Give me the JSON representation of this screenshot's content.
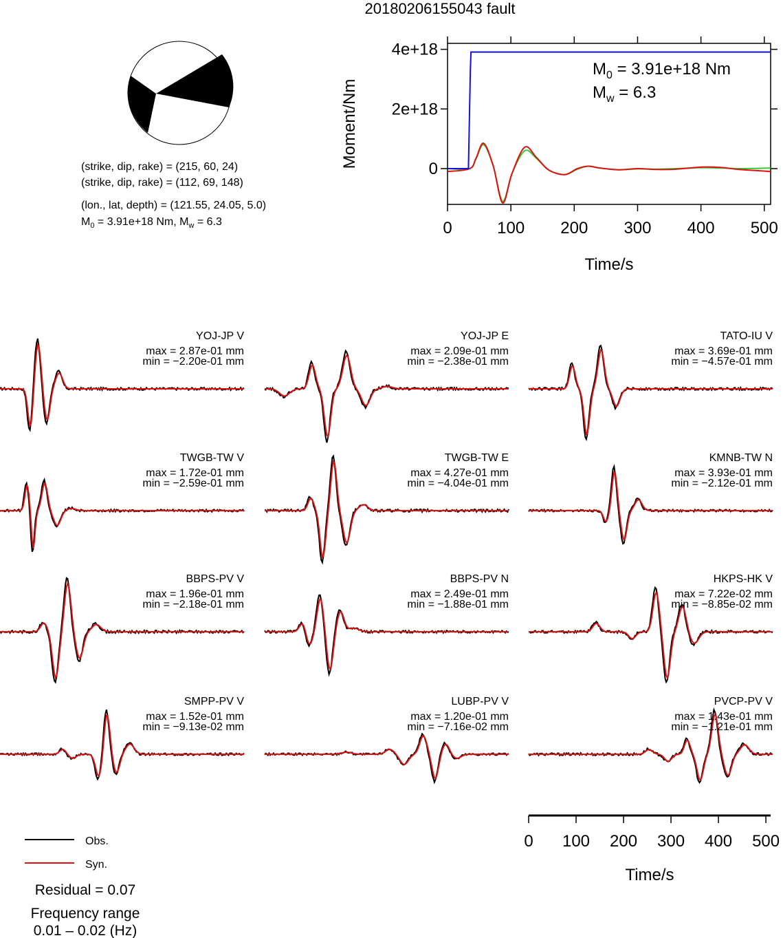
{
  "title": "20180206155043 fault",
  "mechanism": {
    "line1": "(strike, dip, rake) = (215, 60, 24)",
    "line2": "(strike, dip, rake) = (112, 69, 148)",
    "line3": "(lon., lat, depth) = (121.55, 24.05, 5.0)",
    "m0_text": "3.91e+18 Nm",
    "mw_text": "6.3"
  },
  "legend": {
    "obs_label": "Obs.",
    "syn_label": "Syn.",
    "residual": "Residual = 0.07",
    "freq_line1": "Frequency range",
    "freq_line2": "0.01 – 0.02 (Hz)"
  },
  "colors": {
    "obs": "#000000",
    "syn": "#dd1111",
    "moment": "#1111dd",
    "rate_green": "#33cc33"
  },
  "chart_data": [
    {
      "type": "line",
      "ylabel": "Moment/Nm",
      "xlabel": "Time/s",
      "xlim": [
        0,
        510
      ],
      "ylim": [
        -1.2e+18,
        4.2e+18
      ],
      "x_ticks": [
        0,
        100,
        200,
        300,
        400,
        500
      ],
      "y_ticks": [
        0,
        2e+18,
        4e+18
      ],
      "y_tick_labels": [
        "0",
        "2e+18",
        "4e+18"
      ],
      "annotation_m0": "3.91e+18 Nm",
      "annotation_mw": "6.3",
      "series": [
        {
          "color": "#1111dd",
          "x": [
            0,
            33,
            36,
            37,
            510
          ],
          "y": [
            0,
            0,
            3.3e+18,
            3.91e+18,
            3.91e+18
          ]
        },
        {
          "color": "#dd1111",
          "x": [
            0,
            35,
            45,
            57,
            72,
            87,
            102,
            122,
            140,
            160,
            185,
            205,
            222,
            240,
            270,
            300,
            330,
            360,
            400,
            430,
            460,
            490,
            510
          ],
          "y": [
            -1e+17,
            0,
            3.5e+17,
            8.5e+17,
            1e+17,
            -1.15e+18,
            -1.5e+17,
            7.2e+17,
            3.8e+17,
            -5e+16,
            -2e+17,
            0.0,
            8e+16,
            2e+16,
            -4e+16,
            0.0,
            -3e+16,
            -2e+16,
            5e+16,
            4e+16,
            -3e+16,
            -7e+16,
            -1e+17
          ]
        },
        {
          "color": "#33cc33",
          "x": [
            0,
            35,
            45,
            57,
            72,
            87,
            102,
            122,
            140,
            160,
            185,
            205,
            222,
            240,
            270,
            300,
            330,
            360,
            400,
            430,
            460,
            490,
            510
          ],
          "y": [
            0,
            0,
            3.3e+17,
            8e+17,
            1e+17,
            -1.1e+18,
            -1.5e+17,
            6e+17,
            3.5e+17,
            -5e+16,
            -2e+17,
            -2e+16,
            8e+16,
            2e+16,
            -4e+16,
            -1e+16,
            -2e+16,
            0.0,
            3e+16,
            2e+16,
            0.0,
            1e+16,
            2e+16
          ]
        }
      ]
    },
    {
      "type": "line",
      "xlabel": "Time/s",
      "xlim": [
        0,
        510
      ],
      "x_ticks": [
        0,
        100,
        200,
        300,
        400,
        500
      ],
      "stations": [
        {
          "name": "YOJ-JP V",
          "max": "max = 2.87e-01 mm",
          "min": "min = −2.20e-01 mm",
          "peak": 0.287,
          "trough": -0.22
        },
        {
          "name": "YOJ-JP E",
          "max": "max = 2.09e-01 mm",
          "min": "min = −2.38e-01 mm",
          "peak": 0.209,
          "trough": -0.238
        },
        {
          "name": "TATO-IU V",
          "max": "max = 3.69e-01 mm",
          "min": "min = −4.57e-01 mm",
          "peak": 0.369,
          "trough": -0.457
        },
        {
          "name": "TWGB-TW V",
          "max": "max = 1.72e-01 mm",
          "min": "min = −2.59e-01 mm",
          "peak": 0.172,
          "trough": -0.259
        },
        {
          "name": "TWGB-TW E",
          "max": "max = 4.27e-01 mm",
          "min": "min = −4.04e-01 mm",
          "peak": 0.427,
          "trough": -0.404
        },
        {
          "name": "KMNB-TW N",
          "max": "max = 3.93e-01 mm",
          "min": "min = −2.12e-01 mm",
          "peak": 0.393,
          "trough": -0.212
        },
        {
          "name": "BBPS-PV V",
          "max": "max = 1.96e-01 mm",
          "min": "min = −2.18e-01 mm",
          "peak": 0.196,
          "trough": -0.218
        },
        {
          "name": "BBPS-PV N",
          "max": "max = 2.49e-01 mm",
          "min": "min = −1.88e-01 mm",
          "peak": 0.249,
          "trough": -0.188
        },
        {
          "name": "HKPS-HK V",
          "max": "max = 7.22e-02 mm",
          "min": "min = −8.85e-02 mm",
          "peak": 0.0722,
          "trough": -0.0885
        },
        {
          "name": "SMPP-PV V",
          "max": "max = 1.52e-01 mm",
          "min": "min = −9.13e-02 mm",
          "peak": 0.152,
          "trough": -0.0913
        },
        {
          "name": "LUBP-PV V",
          "max": "max = 1.20e-01 mm",
          "min": "min = −7.16e-02 mm",
          "peak": 0.12,
          "trough": -0.0716
        },
        {
          "name": "PVCP-PV V",
          "max": "max = 1.43e-01 mm",
          "min": "min = −1.21e-01 mm",
          "peak": 0.143,
          "trough": -0.121
        }
      ]
    }
  ]
}
